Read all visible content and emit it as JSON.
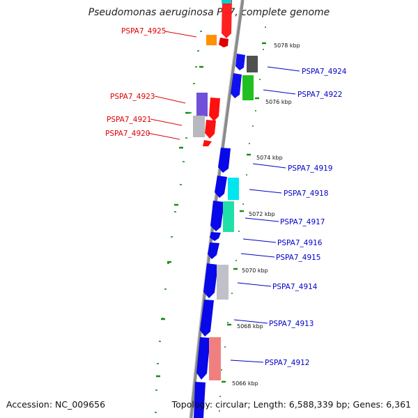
{
  "header": {
    "title": "Pseudomonas aeruginosa PA7, complete genome"
  },
  "footer": {
    "accession": "Accession: NC_009656",
    "topology": "Topology: circular; Length: 6,588,339 bp; Genes: 6,361"
  },
  "colors": {
    "left_labels": "#e00000",
    "right_labels": "#0000c8",
    "ticks": "#1a8a1a",
    "backbone": "#808080"
  },
  "kbp_markers": [
    "5078 kbp",
    "5076 kbp",
    "5074 kbp",
    "5072 kbp",
    "5070 kbp",
    "5068 kbp",
    "5066 kbp"
  ],
  "left_genes": [
    "PSPA7_4925",
    "PSPA7_4923",
    "PSPA7_4921",
    "PSPA7_4920"
  ],
  "right_genes": [
    "PSPA7_4924",
    "PSPA7_4922",
    "PSPA7_4919",
    "PSPA7_4918",
    "PSPA7_4917",
    "PSPA7_4916",
    "PSPA7_4915",
    "PSPA7_4914",
    "PSPA7_4913",
    "PSPA7_4912"
  ]
}
